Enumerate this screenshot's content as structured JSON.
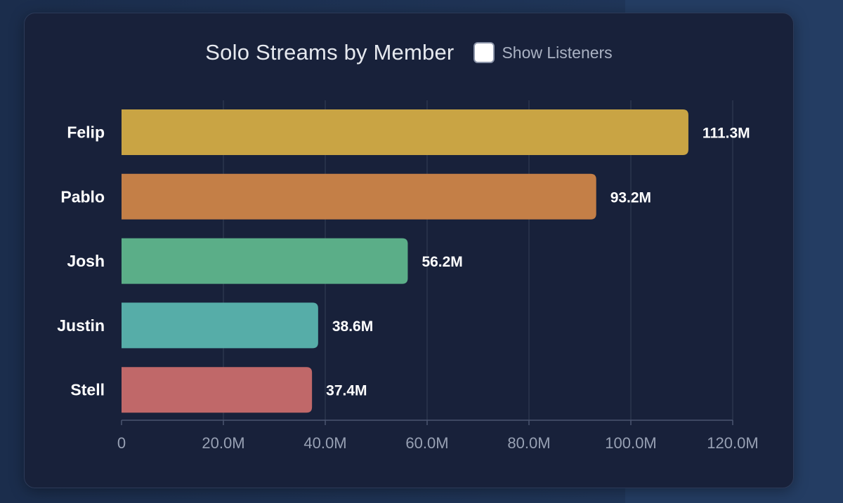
{
  "header": {
    "title": "Solo Streams by Member",
    "toggle_label": "Show Listeners",
    "toggle_checked": false
  },
  "chart_data": {
    "type": "bar",
    "orientation": "horizontal",
    "title": "Solo Streams by Member",
    "categories": [
      "Felip",
      "Pablo",
      "Josh",
      "Justin",
      "Stell"
    ],
    "values": [
      111.3,
      93.2,
      56.2,
      38.6,
      37.4
    ],
    "value_labels": [
      "111.3M",
      "93.2M",
      "56.2M",
      "38.6M",
      "37.4M"
    ],
    "colors": [
      "#c9a444",
      "#c47f47",
      "#5bae88",
      "#56ada8",
      "#c06869"
    ],
    "xlim": [
      0,
      120
    ],
    "xticks": [
      0,
      20,
      40,
      60,
      80,
      100,
      120
    ],
    "xtick_labels": [
      "0",
      "20.0M",
      "40.0M",
      "60.0M",
      "80.0M",
      "100.0M",
      "120.0M"
    ],
    "xlabel": "",
    "ylabel": "",
    "grid": true,
    "legend": "none"
  },
  "colors": {
    "card_bg": "#18213a",
    "grid": "#2b354d",
    "axis": "#4a5570",
    "tick_text": "#97a0b3",
    "category_text": "#ffffff",
    "value_text": "#ffffff"
  }
}
